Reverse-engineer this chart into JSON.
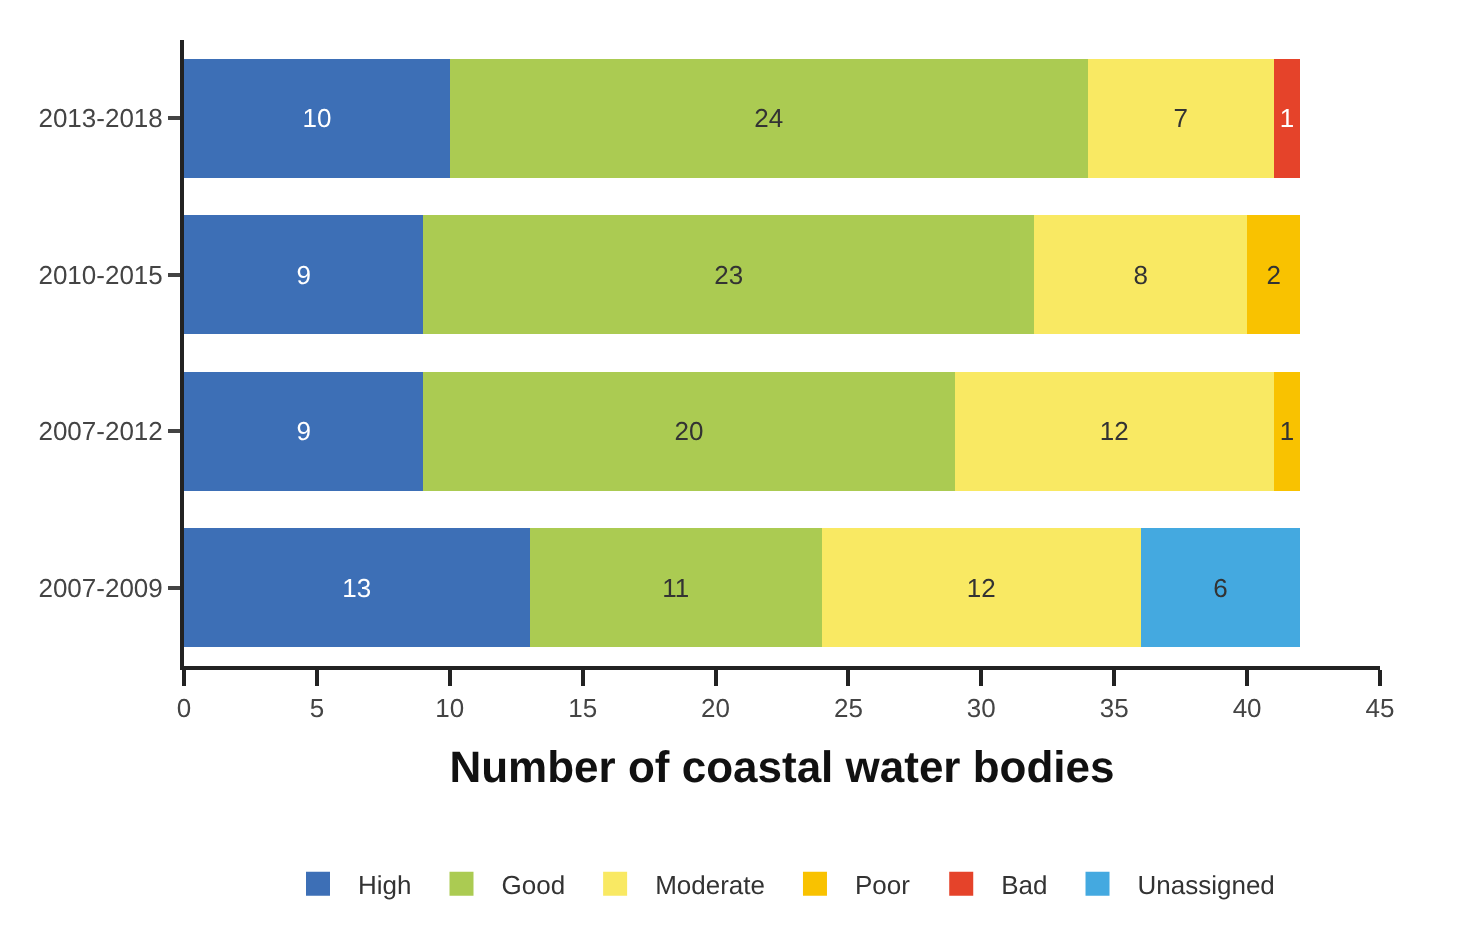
{
  "chart_data": {
    "type": "bar",
    "orientation": "horizontal",
    "stacked": true,
    "xlabel": "Number of coastal water bodies",
    "categories": [
      "2013-2018",
      "2010-2015",
      "2007-2012",
      "2007-2009"
    ],
    "series": [
      {
        "name": "High",
        "color": "#3d6fb6",
        "values": [
          10,
          9,
          9,
          13
        ]
      },
      {
        "name": "Good",
        "color": "#abcb52",
        "values": [
          24,
          23,
          20,
          11
        ]
      },
      {
        "name": "Moderate",
        "color": "#f9e963",
        "values": [
          7,
          8,
          12,
          12
        ]
      },
      {
        "name": "Poor",
        "color": "#f9c200",
        "values": [
          null,
          2,
          1,
          null
        ]
      },
      {
        "name": "Bad",
        "color": "#e5432a",
        "values": [
          1,
          null,
          null,
          null
        ]
      },
      {
        "name": "Unassigned",
        "color": "#44a9e0",
        "values": [
          null,
          null,
          null,
          6
        ]
      }
    ],
    "xlim": [
      0,
      45
    ],
    "xticks": [
      0,
      5,
      10,
      15,
      20,
      25,
      30,
      35,
      40,
      45
    ],
    "data_labels": true,
    "legend": "bottom"
  }
}
